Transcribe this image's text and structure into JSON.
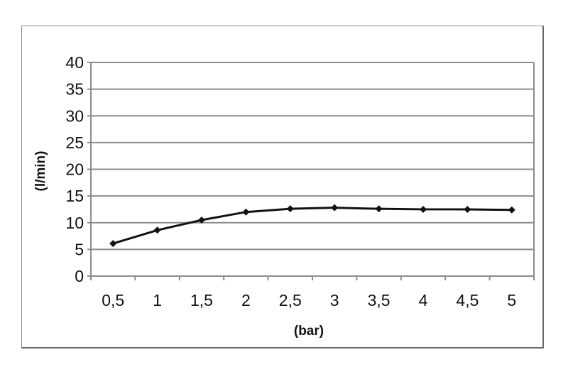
{
  "chart_data": {
    "type": "line",
    "title": "",
    "xlabel": "(bar)",
    "ylabel": "(l/min)",
    "categories": [
      "0,5",
      "1",
      "1,5",
      "2",
      "2,5",
      "3",
      "3,5",
      "4",
      "4,5",
      "5"
    ],
    "series": [
      {
        "values": [
          6.1,
          8.6,
          10.5,
          12.0,
          12.6,
          12.8,
          12.6,
          12.5,
          12.5,
          12.4
        ]
      }
    ],
    "ylim": [
      0,
      40
    ],
    "yticks": [
      "0",
      "5",
      "10",
      "15",
      "20",
      "25",
      "30",
      "35",
      "40"
    ],
    "grid": "horizontal",
    "marker": "diamond",
    "colors": {
      "line": "#111111",
      "grid": "#8c8c8c"
    }
  }
}
